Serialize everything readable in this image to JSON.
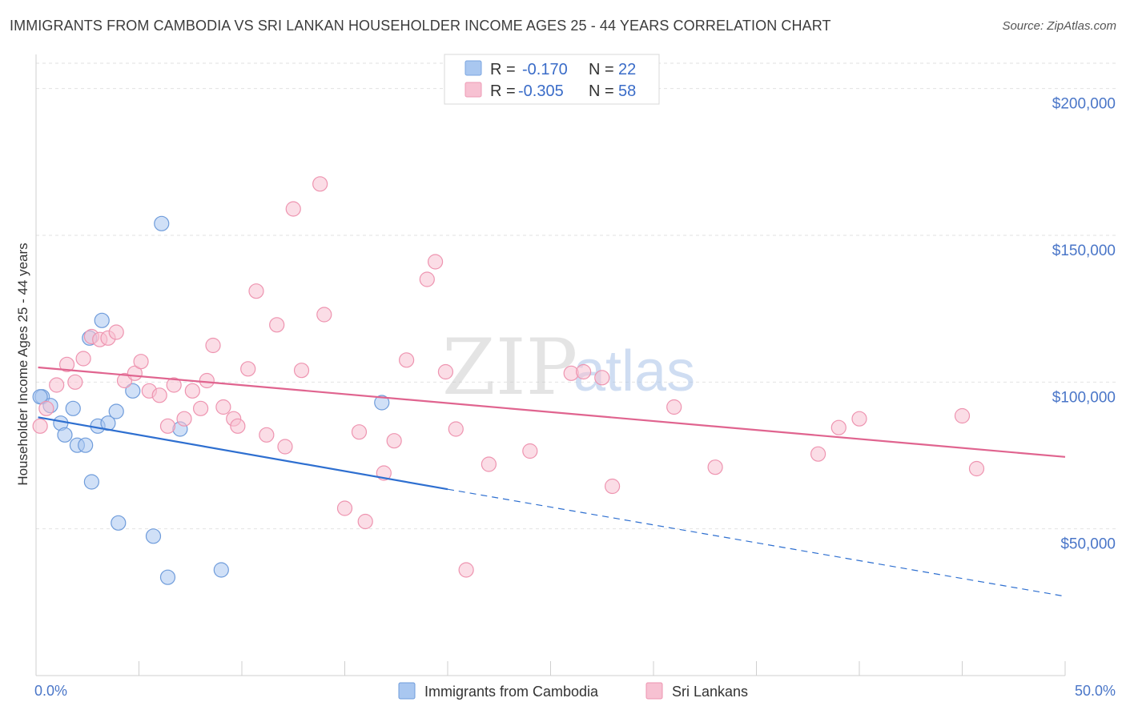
{
  "title": "IMMIGRANTS FROM CAMBODIA VS SRI LANKAN HOUSEHOLDER INCOME AGES 25 - 44 YEARS CORRELATION CHART",
  "source": "Source: ZipAtlas.com",
  "watermark": {
    "zip": "ZIP",
    "atlas": "atlas"
  },
  "stats": [
    {
      "r_label": "R =",
      "r_value": "-0.170",
      "n_label": "N =",
      "n_value": "22",
      "color": "#a9c7f0",
      "stroke": "#7aa6e0"
    },
    {
      "r_label": "R =",
      "r_value": "-0.305",
      "n_label": "N =",
      "n_value": "58",
      "color": "#f7c1d2",
      "stroke": "#ee9ab4"
    }
  ],
  "chart_data": {
    "type": "scatter",
    "ylabel": "Householder Income Ages 25 - 44 years",
    "xlim": [
      0,
      50
    ],
    "ylim": [
      0,
      210000
    ],
    "x_tick_labels": [
      {
        "value": 0,
        "label": "0.0%"
      },
      {
        "value": 50,
        "label": "50.0%"
      }
    ],
    "y_tick_labels": [
      {
        "value": 50000,
        "label": "$50,000"
      },
      {
        "value": 100000,
        "label": "$100,000"
      },
      {
        "value": 150000,
        "label": "$150,000"
      },
      {
        "value": 200000,
        "label": "$200,000"
      }
    ],
    "grid": true,
    "legend_position": "bottom",
    "series": [
      {
        "name": "Immigrants from Cambodia",
        "color": "#a9c7f0",
        "stroke": "#6f9cdb",
        "trend_color": "#2e6fd0",
        "trend": {
          "x0": 0.1,
          "y0": 88000,
          "x1": 20,
          "y1": 63500,
          "x_dash_end": 50,
          "y_dash_end": 27000
        },
        "points": [
          [
            0.3,
            95000
          ],
          [
            0.7,
            92000
          ],
          [
            1.2,
            86000
          ],
          [
            1.4,
            82000
          ],
          [
            1.8,
            91000
          ],
          [
            2.0,
            78500
          ],
          [
            2.4,
            78500
          ],
          [
            2.7,
            66000
          ],
          [
            3.0,
            85000
          ],
          [
            3.2,
            121000
          ],
          [
            2.6,
            115000
          ],
          [
            3.5,
            86000
          ],
          [
            3.9,
            90000
          ],
          [
            4.0,
            52000
          ],
          [
            4.7,
            97000
          ],
          [
            5.7,
            47500
          ],
          [
            6.1,
            154000
          ],
          [
            6.4,
            33500
          ],
          [
            7.0,
            84000
          ],
          [
            9.0,
            36000
          ],
          [
            16.8,
            93000
          ],
          [
            0.2,
            95000
          ]
        ]
      },
      {
        "name": "Sri Lankans",
        "color": "#f7c1d2",
        "stroke": "#ee94b0",
        "trend_color": "#e0648f",
        "trend": {
          "x0": 0.1,
          "y0": 105000,
          "x1": 50,
          "y1": 74500
        },
        "points": [
          [
            0.2,
            85000
          ],
          [
            0.5,
            91000
          ],
          [
            1.0,
            99000
          ],
          [
            1.5,
            106000
          ],
          [
            1.9,
            100000
          ],
          [
            2.3,
            108000
          ],
          [
            2.7,
            115500
          ],
          [
            3.1,
            114500
          ],
          [
            3.5,
            115000
          ],
          [
            3.9,
            117000
          ],
          [
            4.3,
            100500
          ],
          [
            4.8,
            103000
          ],
          [
            5.1,
            107000
          ],
          [
            5.5,
            97000
          ],
          [
            6.0,
            95500
          ],
          [
            6.4,
            85000
          ],
          [
            6.7,
            99000
          ],
          [
            7.2,
            87500
          ],
          [
            7.6,
            97000
          ],
          [
            8.0,
            91000
          ],
          [
            8.3,
            100500
          ],
          [
            8.6,
            112500
          ],
          [
            9.1,
            91500
          ],
          [
            9.6,
            87500
          ],
          [
            9.8,
            85000
          ],
          [
            10.3,
            104500
          ],
          [
            10.7,
            131000
          ],
          [
            11.2,
            82000
          ],
          [
            11.7,
            119500
          ],
          [
            12.1,
            78000
          ],
          [
            12.5,
            159000
          ],
          [
            12.9,
            104000
          ],
          [
            13.8,
            167500
          ],
          [
            14.0,
            123000
          ],
          [
            15.0,
            57000
          ],
          [
            15.7,
            83000
          ],
          [
            16.0,
            52500
          ],
          [
            16.9,
            69000
          ],
          [
            17.4,
            80000
          ],
          [
            18.0,
            107500
          ],
          [
            19.0,
            135000
          ],
          [
            19.4,
            141000
          ],
          [
            19.9,
            103500
          ],
          [
            20.4,
            84000
          ],
          [
            20.9,
            36000
          ],
          [
            22.0,
            72000
          ],
          [
            24.0,
            76500
          ],
          [
            26.0,
            103000
          ],
          [
            26.6,
            103500
          ],
          [
            27.5,
            101500
          ],
          [
            28.0,
            64500
          ],
          [
            31.0,
            91500
          ],
          [
            33.0,
            71000
          ],
          [
            38.0,
            75500
          ],
          [
            39.0,
            84500
          ],
          [
            40.0,
            87500
          ],
          [
            45.0,
            88500
          ],
          [
            45.7,
            70500
          ]
        ]
      }
    ]
  }
}
